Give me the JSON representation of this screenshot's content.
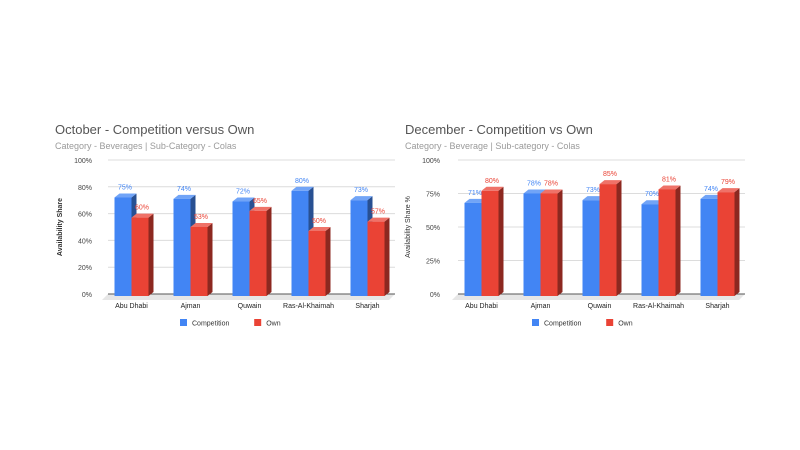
{
  "chart_data": [
    {
      "type": "bar",
      "title": "October - Competition versus Own",
      "subtitle": "Category - Beverages | Sub-Category - Colas",
      "xlabel": "",
      "ylabel": "Availability Share",
      "ylim": [
        0,
        100
      ],
      "yticks": [
        "0%",
        "20%",
        "40%",
        "60%",
        "80%",
        "100%"
      ],
      "ytick_values": [
        0,
        20,
        40,
        60,
        80,
        100
      ],
      "grid": true,
      "legend": "bottom",
      "categories": [
        "Abu Dhabi",
        "Ajman",
        "Quwain",
        "Ras-Al-Khaimah",
        "Sharjah"
      ],
      "series": [
        {
          "name": "Competition",
          "color": "#4285f4",
          "values": [
            75,
            74,
            72,
            80,
            73
          ],
          "labels": [
            "75%",
            "74%",
            "72%",
            "80%",
            "73%"
          ]
        },
        {
          "name": "Own",
          "color": "#ea4335",
          "values": [
            60,
            53,
            65,
            50,
            57
          ],
          "labels": [
            "60%",
            "53%",
            "65%",
            "50%",
            "57%"
          ]
        }
      ]
    },
    {
      "type": "bar",
      "title": "December - Competition vs Own",
      "subtitle": "Category - Beverage | Sub-category - Colas",
      "xlabel": "",
      "ylabel": "Availability Share %",
      "ylim": [
        0,
        100
      ],
      "yticks": [
        "0%",
        "25%",
        "50%",
        "75%",
        "100%"
      ],
      "ytick_values": [
        0,
        25,
        50,
        75,
        100
      ],
      "grid": true,
      "legend": "bottom",
      "categories": [
        "Abu Dhabi",
        "Ajman",
        "Quwain",
        "Ras-Al-Khaimah",
        "Sharjah"
      ],
      "series": [
        {
          "name": "Competition",
          "color": "#4285f4",
          "values": [
            71,
            78,
            73,
            70,
            74
          ],
          "labels": [
            "71%",
            "78%",
            "73%",
            "70%",
            "74%"
          ]
        },
        {
          "name": "Own",
          "color": "#ea4335",
          "values": [
            80,
            78,
            85,
            81,
            79
          ],
          "labels": [
            "80%",
            "78%",
            "85%",
            "81%",
            "79%"
          ]
        }
      ]
    }
  ]
}
